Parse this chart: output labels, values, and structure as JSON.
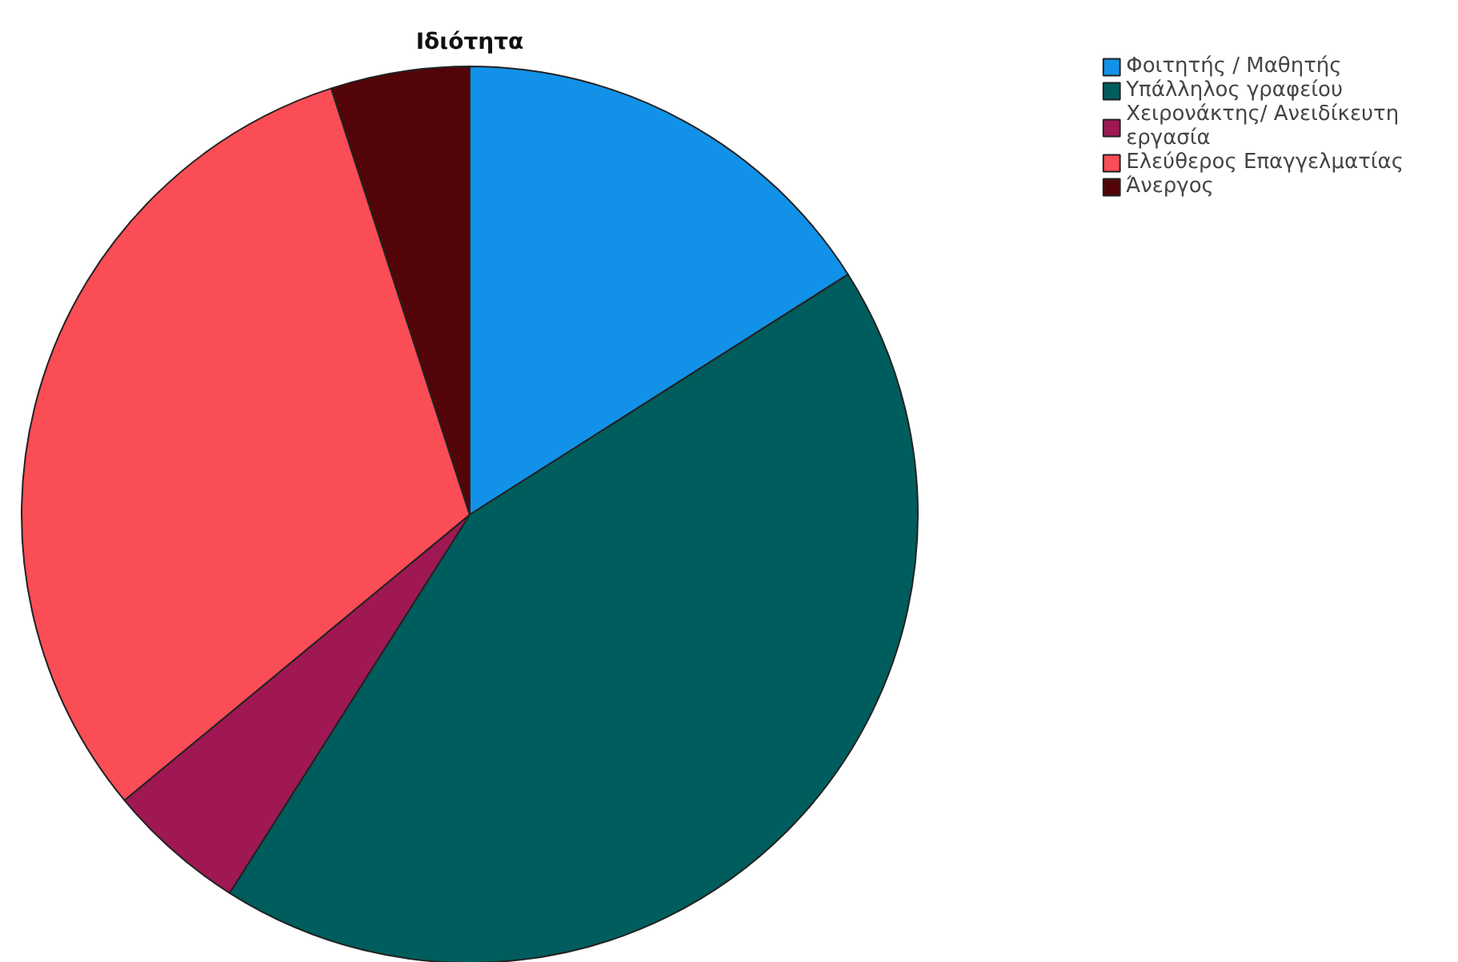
{
  "chart_data": {
    "type": "pie",
    "title": "Ιδιότητα",
    "categories": [
      "Φοιτητής / Μαθητής",
      "Υπάλληλος γραφείου",
      "Χειρονάκτης/ Ανειδίκευτη εργασία",
      "Ελεύθερος Επαγγελματίας",
      "Άνεργος"
    ],
    "values": [
      16,
      43,
      5,
      31,
      5
    ],
    "colors": [
      "#1192e8",
      "#005d5d",
      "#9f1853",
      "#fa4d56",
      "#520408"
    ],
    "legend": "top right"
  }
}
